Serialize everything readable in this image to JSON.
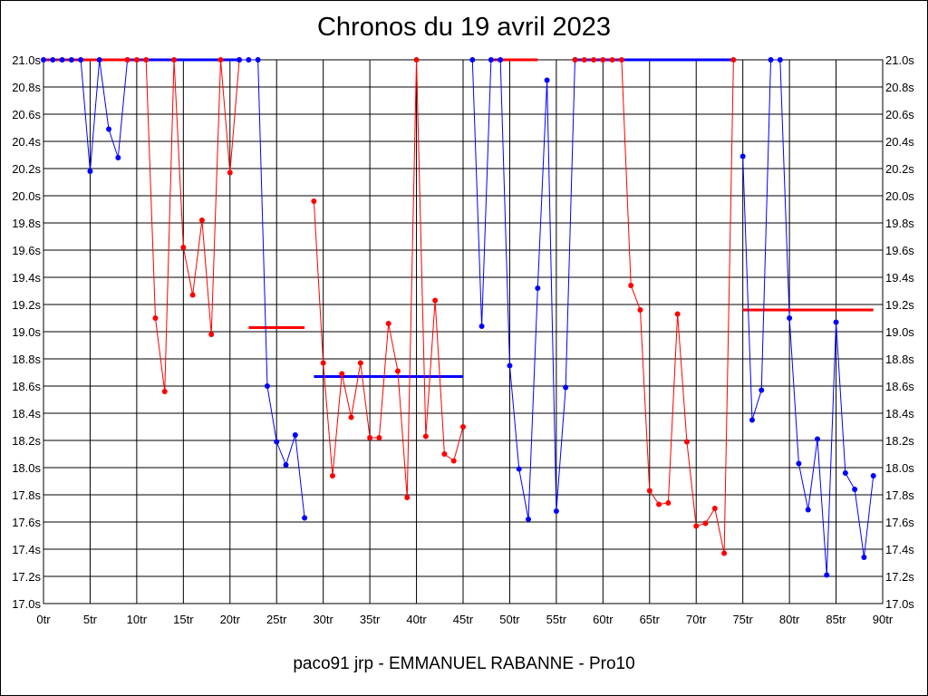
{
  "chart_data": {
    "type": "line",
    "title": "Chronos du 19 avril 2023",
    "footer": "paco91 jrp - EMMANUEL RABANNE - Pro10",
    "xlabel": "",
    "ylabel": "",
    "xlim": [
      0,
      90
    ],
    "ylim": [
      17.0,
      21.0
    ],
    "x_ticks": [
      0,
      5,
      10,
      15,
      20,
      25,
      30,
      35,
      40,
      45,
      50,
      55,
      60,
      65,
      70,
      75,
      80,
      85,
      90
    ],
    "x_tick_labels": [
      "0tr",
      "5tr",
      "10tr",
      "15tr",
      "20tr",
      "25tr",
      "30tr",
      "35tr",
      "40tr",
      "45tr",
      "50tr",
      "55tr",
      "60tr",
      "65tr",
      "70tr",
      "75tr",
      "80tr",
      "85tr",
      "90tr"
    ],
    "y_ticks": [
      17.0,
      17.2,
      17.4,
      17.6,
      17.8,
      18.0,
      18.2,
      18.4,
      18.6,
      18.8,
      19.0,
      19.2,
      19.4,
      19.6,
      19.8,
      20.0,
      20.2,
      20.4,
      20.6,
      20.8,
      21.0
    ],
    "y_tick_labels": [
      "17.0s",
      "17.2s",
      "17.4s",
      "17.6s",
      "17.8s",
      "18.0s",
      "18.2s",
      "18.4s",
      "18.6s",
      "18.8s",
      "19.0s",
      "19.2s",
      "19.4s",
      "19.6s",
      "19.8s",
      "20.0s",
      "20.2s",
      "20.4s",
      "20.6s",
      "20.8s",
      "21.0s"
    ],
    "grid": true,
    "colors": {
      "blue": "#0000ff",
      "red": "#ff0000"
    },
    "series": [
      {
        "color": "blue",
        "x": [
          0,
          1,
          2,
          3,
          4,
          5,
          6,
          7,
          8,
          9
        ],
        "y": [
          21.0,
          21.0,
          21.0,
          21.0,
          21.0,
          20.18,
          21.0,
          20.49,
          20.28,
          21.0
        ]
      },
      {
        "color": "red",
        "x": [
          9,
          10,
          11,
          12,
          13,
          14,
          15,
          16,
          17,
          18,
          19,
          20,
          21
        ],
        "y": [
          21.0,
          21.0,
          21.0,
          19.1,
          18.56,
          21.0,
          19.62,
          19.27,
          19.82,
          18.98,
          21.0,
          20.17,
          21.0
        ]
      },
      {
        "color": "blue",
        "x": [
          21,
          22,
          23,
          24,
          25,
          26,
          27,
          28
        ],
        "y": [
          21.0,
          21.0,
          21.0,
          18.6,
          18.19,
          18.02,
          18.24,
          17.63
        ]
      },
      {
        "color": "red",
        "x": [
          29,
          30,
          31,
          32,
          33,
          34,
          35,
          36,
          37,
          38,
          39,
          40,
          41,
          42,
          43,
          44,
          45
        ],
        "y": [
          19.96,
          18.77,
          17.94,
          18.69,
          18.37,
          18.77,
          18.22,
          18.22,
          19.06,
          18.71,
          17.78,
          21.0,
          18.23,
          19.23,
          18.1,
          18.05,
          18.3
        ]
      },
      {
        "color": "blue",
        "x": [
          46,
          47,
          48,
          49,
          50,
          51,
          52,
          53,
          54,
          55,
          56,
          57
        ],
        "y": [
          21.0,
          19.04,
          21.0,
          21.0,
          18.75,
          17.99,
          17.62,
          19.32,
          20.85,
          17.68,
          18.59,
          21.0
        ]
      },
      {
        "color": "red",
        "x": [
          57,
          58,
          59,
          60,
          61,
          62,
          63,
          64,
          65,
          66,
          67,
          68,
          69,
          70,
          71,
          72,
          73,
          74
        ],
        "y": [
          21.0,
          21.0,
          21.0,
          21.0,
          21.0,
          21.0,
          19.34,
          19.16,
          17.83,
          17.73,
          17.74,
          19.13,
          18.19,
          17.57,
          17.59,
          17.7,
          17.37,
          21.0
        ]
      },
      {
        "color": "blue",
        "x": [
          75,
          76,
          77,
          78,
          79,
          80,
          81,
          82,
          83,
          84,
          85,
          86,
          87,
          88,
          89
        ],
        "y": [
          20.29,
          18.35,
          18.57,
          21.0,
          21.0,
          19.1,
          18.03,
          17.69,
          18.21,
          17.21,
          19.07,
          17.96,
          17.84,
          17.34,
          17.94
        ]
      }
    ],
    "flat_lines": [
      {
        "color": "red",
        "x": [
          0,
          9
        ],
        "y": 21.0
      },
      {
        "color": "blue",
        "x": [
          9,
          21
        ],
        "y": 21.0
      },
      {
        "color": "red",
        "x": [
          22,
          28
        ],
        "y": 19.03
      },
      {
        "color": "blue",
        "x": [
          29,
          45
        ],
        "y": 18.67
      },
      {
        "color": "red",
        "x": [
          48,
          53
        ],
        "y": 21.0
      },
      {
        "color": "blue",
        "x": [
          57,
          74
        ],
        "y": 21.0
      },
      {
        "color": "red",
        "x": [
          75,
          89
        ],
        "y": 19.16
      }
    ]
  }
}
